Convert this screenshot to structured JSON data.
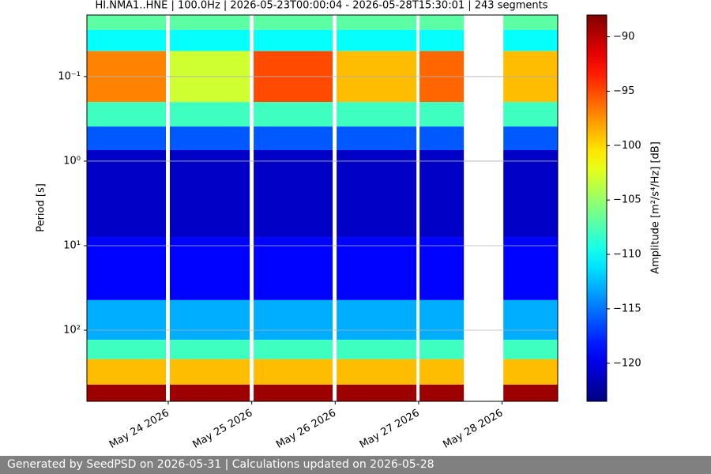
{
  "chart_data": {
    "type": "spectrogram",
    "title": "HI.NMA1..HNE | 100.0Hz | 2026-05-23T00:00:04 - 2026-05-28T15:30:01 | 243 segments",
    "ylabel": "Period [s]",
    "colorbar_label": "Amplitude [m²/s⁴/Hz] [dB]",
    "colormap": "jet",
    "yscale": "log",
    "grid": true,
    "xlim": [
      "2026-05-23T00:36",
      "2026-05-28T16:00"
    ],
    "xticks": [
      {
        "value": "2026-05-24T00:00",
        "label": "May 24 2026"
      },
      {
        "value": "2026-05-25T00:00",
        "label": "May 25 2026"
      },
      {
        "value": "2026-05-26T00:00",
        "label": "May 26 2026"
      },
      {
        "value": "2026-05-27T00:00",
        "label": "May 27 2026"
      },
      {
        "value": "2026-05-28T00:00",
        "label": "May 28 2026"
      }
    ],
    "ylim": [
      693,
      0.0187
    ],
    "yticks": [
      {
        "value": 0.1,
        "label": "10⁻¹"
      },
      {
        "value": 1,
        "label": "10⁰"
      },
      {
        "value": 10,
        "label": "10¹"
      },
      {
        "value": 100,
        "label": "10²"
      }
    ],
    "clim": [
      -123.5,
      -88
    ],
    "cticks": [
      {
        "value": -90,
        "label": "−90"
      },
      {
        "value": -95,
        "label": "−95"
      },
      {
        "value": -100,
        "label": "−100"
      },
      {
        "value": -105,
        "label": "−105"
      },
      {
        "value": -110,
        "label": "−110"
      },
      {
        "value": -115,
        "label": "−115"
      },
      {
        "value": -120,
        "label": "−120"
      }
    ],
    "period_edges": [
      0.0187,
      0.028,
      0.05,
      0.2,
      0.39,
      0.74,
      7.9,
      44,
      130,
      220,
      440,
      693
    ],
    "segments": [
      {
        "start": "2026-05-23T00:36",
        "end": "2026-05-23T23:19",
        "values": [
          -107,
          -110,
          -97,
          -108,
          -116,
          -121,
          -119,
          -113,
          -108,
          -99,
          -89
        ]
      },
      {
        "start": "2026-05-24T00:27",
        "end": "2026-05-24T23:25",
        "values": [
          -107,
          -110,
          -103,
          -108,
          -116,
          -121,
          -119,
          -113,
          -108,
          -99,
          -89
        ]
      },
      {
        "start": "2026-05-25T00:33",
        "end": "2026-05-25T23:16",
        "values": [
          -107,
          -110,
          -95,
          -108,
          -116,
          -121,
          -119,
          -113,
          -108,
          -99,
          -89
        ]
      },
      {
        "start": "2026-05-26T00:25",
        "end": "2026-05-26T23:22",
        "values": [
          -107,
          -110,
          -99,
          -108,
          -116,
          -121,
          -119,
          -113,
          -108,
          -99,
          -89
        ]
      },
      {
        "start": "2026-05-27T00:16",
        "end": "2026-05-27T13:00",
        "values": [
          -107,
          -110,
          -96,
          -108,
          -116,
          -121,
          -119,
          -113,
          -108,
          -99,
          -89
        ]
      },
      {
        "start": "2026-05-28T00:22",
        "end": "2026-05-28T16:00",
        "values": [
          -107,
          -110,
          -99,
          -108,
          -116,
          -121,
          -119,
          -113,
          -108,
          -99,
          -89
        ]
      }
    ]
  },
  "footer": "Generated by SeedPSD on 2026-05-31 | Calculations updated on 2026-05-28"
}
